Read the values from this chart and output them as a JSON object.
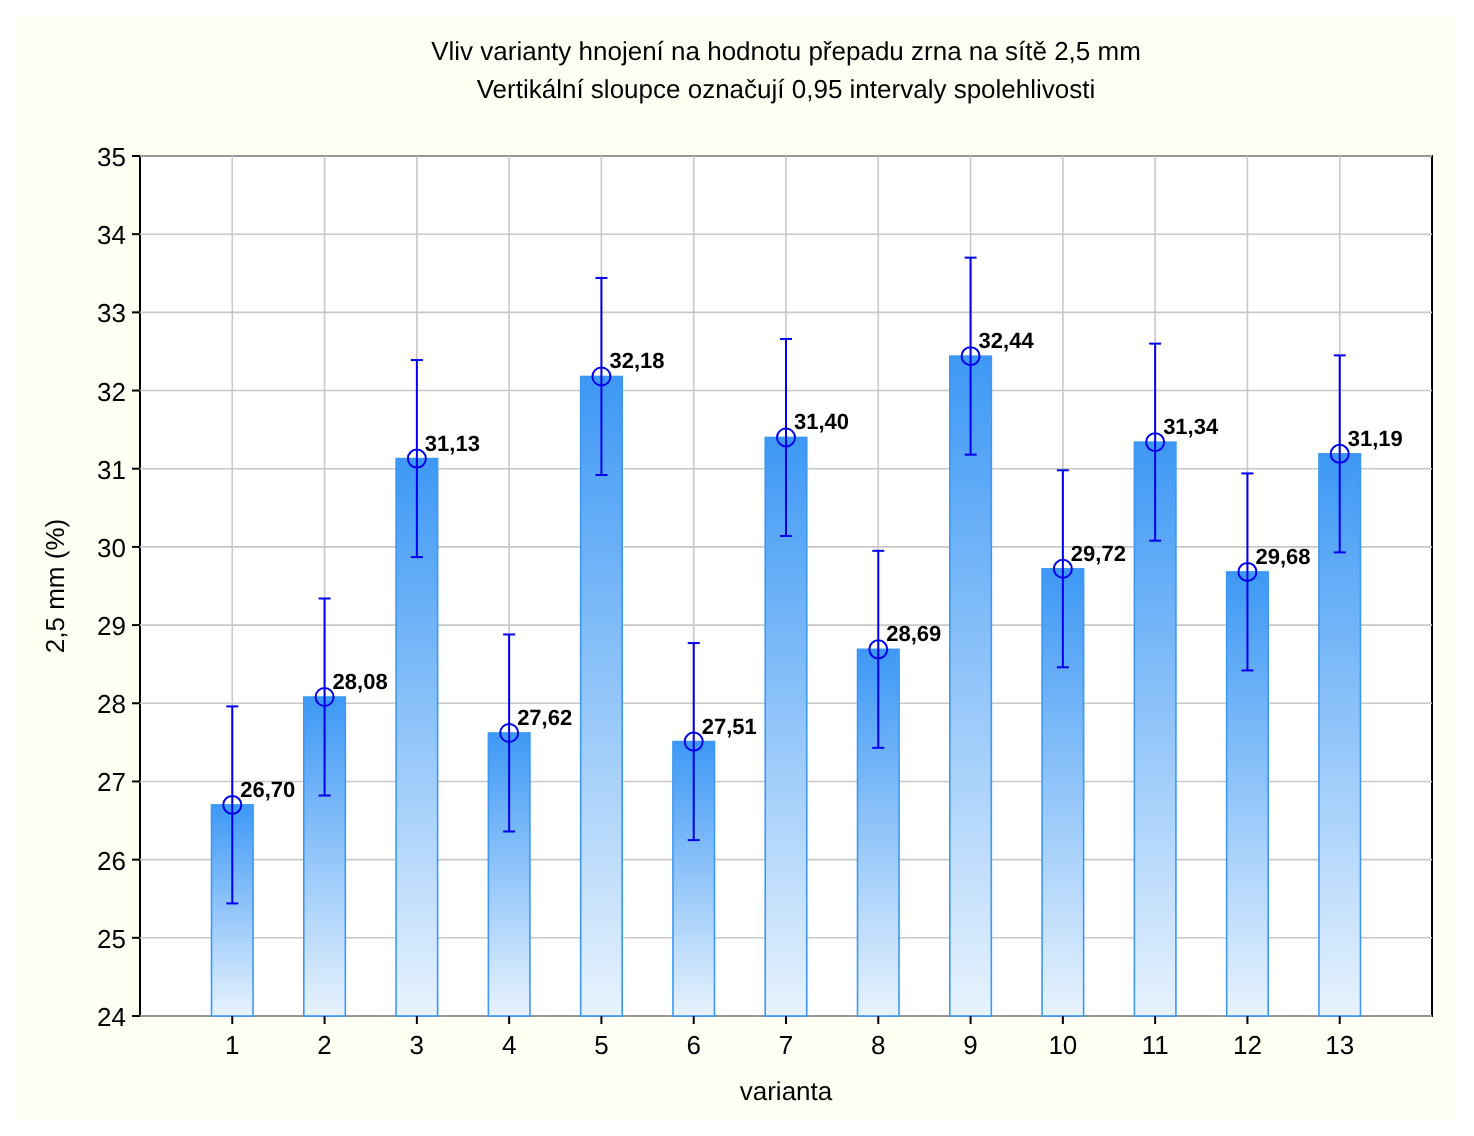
{
  "chart_data": {
    "type": "bar",
    "title": "Vliv varianty hnojení na hodnotu přepadu zrna na sítě 2,5 mm",
    "subtitle": "Vertikální sloupce označují 0,95 intervaly spolehlivosti",
    "xlabel": "varianta",
    "ylabel": "2,5 mm (%)",
    "x": [
      1,
      2,
      3,
      4,
      5,
      6,
      7,
      8,
      9,
      10,
      11,
      12,
      13
    ],
    "xlim": [
      0,
      14
    ],
    "xticks": [
      1,
      2,
      3,
      4,
      5,
      6,
      7,
      8,
      9,
      10,
      11,
      12,
      13
    ],
    "ylim": [
      24,
      35
    ],
    "yticks": [
      24,
      25,
      26,
      27,
      28,
      29,
      30,
      31,
      32,
      33,
      34,
      35
    ],
    "series": [
      {
        "color": "#3d98f5",
        "values": [
          26.7,
          28.08,
          31.13,
          27.62,
          32.18,
          27.51,
          31.4,
          28.69,
          32.44,
          29.72,
          31.34,
          29.68,
          31.19
        ],
        "value_labels": [
          "26,70",
          "28,08",
          "31,13",
          "27,62",
          "32,18",
          "27,51",
          "31,40",
          "28,69",
          "32,44",
          "29,72",
          "31,34",
          "29,68",
          "31,19"
        ],
        "errors": [
          1.26,
          1.26,
          1.26,
          1.26,
          1.26,
          1.26,
          1.26,
          1.26,
          1.26,
          1.26,
          1.26,
          1.26,
          1.26
        ]
      },
      {
        "type": "scatter",
        "color": "#0000ee",
        "marker": "circle",
        "values": [
          26.7,
          28.08,
          31.13,
          27.62,
          32.18,
          27.51,
          31.4,
          28.69,
          32.44,
          29.72,
          31.34,
          29.68,
          31.19
        ]
      }
    ],
    "grid": true
  }
}
